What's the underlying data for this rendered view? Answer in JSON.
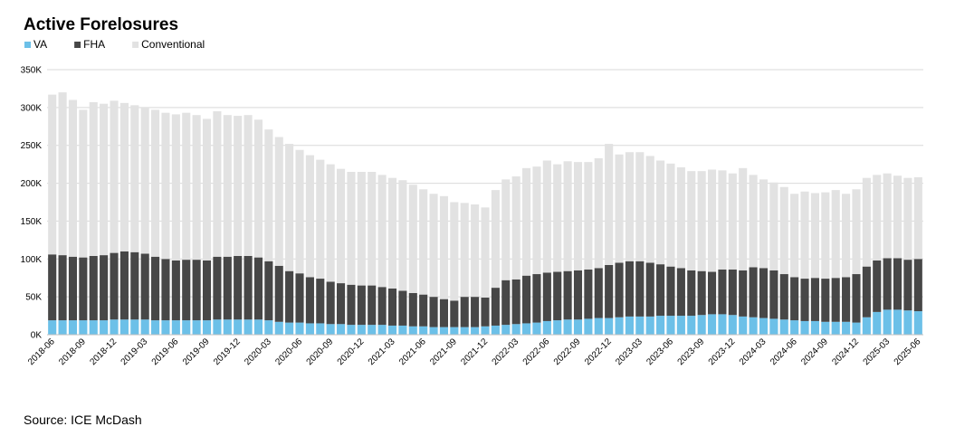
{
  "chart_data": {
    "type": "stacked_bar",
    "title": "Active Forelosures",
    "source": "Source: ICE McDash",
    "categories": [
      "2018-06",
      null,
      null,
      "2018-09",
      null,
      null,
      "2018-12",
      null,
      null,
      "2019-03",
      null,
      null,
      "2019-06",
      null,
      null,
      "2019-09",
      null,
      null,
      "2019-12",
      null,
      null,
      "2020-03",
      null,
      null,
      "2020-06",
      null,
      null,
      "2020-09",
      null,
      null,
      "2020-12",
      null,
      null,
      "2021-03",
      null,
      null,
      "2021-06",
      null,
      null,
      "2021-09",
      null,
      null,
      "2021-12",
      null,
      null,
      "2022-03",
      null,
      null,
      "2022-06",
      null,
      null,
      "2022-09",
      null,
      null,
      "2022-12",
      null,
      null,
      "2023-03",
      null,
      null,
      "2023-06",
      null,
      null,
      "2023-09",
      null,
      null,
      "2023-12",
      null,
      null,
      "2024-03",
      null,
      null,
      "2024-06",
      null,
      null,
      "2024-09",
      null,
      null,
      "2024-12",
      null,
      null,
      "2025-03",
      null,
      null,
      "2025-06"
    ],
    "series": [
      {
        "name": "VA",
        "color": "#6cc0e8",
        "values": [
          19,
          19,
          19,
          19,
          19,
          19,
          20,
          20,
          20,
          20,
          19,
          19,
          19,
          19,
          19,
          19,
          20,
          20,
          20,
          20,
          20,
          19,
          17,
          16,
          16,
          15,
          15,
          14,
          14,
          13,
          13,
          13,
          13,
          12,
          12,
          11,
          11,
          10,
          10,
          10,
          10,
          10,
          11,
          12,
          13,
          14,
          15,
          16,
          18,
          19,
          20,
          20,
          21,
          22,
          22,
          23,
          24,
          24,
          24,
          25,
          25,
          25,
          25,
          26,
          27,
          27,
          26,
          24,
          23,
          22,
          21,
          20,
          19,
          18,
          18,
          17,
          17,
          17,
          16,
          23,
          30,
          33,
          33,
          32,
          31
        ]
      },
      {
        "name": "FHA",
        "color": "#474747",
        "values": [
          87,
          86,
          84,
          83,
          85,
          86,
          88,
          90,
          89,
          87,
          84,
          81,
          79,
          80,
          80,
          79,
          83,
          83,
          84,
          84,
          82,
          78,
          74,
          68,
          65,
          61,
          59,
          56,
          54,
          53,
          52,
          52,
          50,
          49,
          46,
          44,
          42,
          40,
          37,
          35,
          40,
          40,
          38,
          50,
          59,
          59,
          63,
          64,
          64,
          64,
          64,
          65,
          65,
          66,
          70,
          72,
          73,
          73,
          71,
          68,
          65,
          63,
          60,
          58,
          56,
          59,
          60,
          61,
          66,
          66,
          64,
          60,
          57,
          56,
          57,
          57,
          58,
          59,
          64,
          67,
          68,
          68,
          68,
          67,
          69
        ]
      },
      {
        "name": "Conventional",
        "color": "#e2e2e2",
        "values": [
          211,
          215,
          207,
          195,
          203,
          200,
          201,
          196,
          194,
          193,
          194,
          193,
          193,
          194,
          191,
          187,
          192,
          187,
          185,
          186,
          182,
          174,
          170,
          168,
          163,
          161,
          157,
          155,
          151,
          149,
          150,
          150,
          148,
          146,
          146,
          143,
          139,
          136,
          136,
          130,
          124,
          122,
          119,
          129,
          133,
          136,
          142,
          142,
          148,
          142,
          145,
          143,
          142,
          145,
          160,
          143,
          144,
          144,
          141,
          137,
          136,
          133,
          131,
          132,
          135,
          131,
          127,
          135,
          122,
          117,
          116,
          115,
          110,
          115,
          112,
          114,
          116,
          110,
          112,
          117,
          113,
          112,
          109,
          108,
          108
        ]
      }
    ],
    "ylim": [
      0,
      350
    ],
    "yticks": [
      {
        "value": 0,
        "label": "0K"
      },
      {
        "value": 50,
        "label": "50K"
      },
      {
        "value": 100,
        "label": "100K"
      },
      {
        "value": 150,
        "label": "150K"
      },
      {
        "value": 200,
        "label": "200K"
      },
      {
        "value": 250,
        "label": "250K"
      },
      {
        "value": 300,
        "label": "300K"
      },
      {
        "value": 350,
        "label": "350K"
      }
    ],
    "grid": true
  }
}
